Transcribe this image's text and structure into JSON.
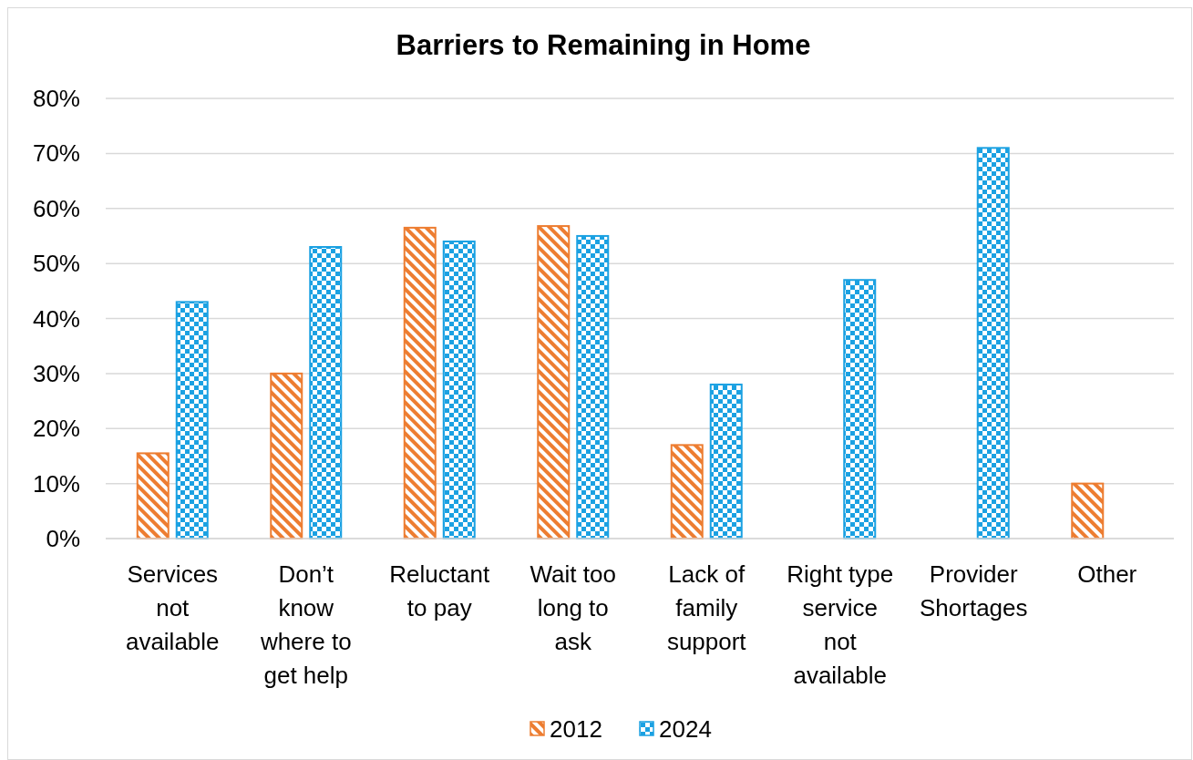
{
  "chart_data": {
    "type": "bar",
    "title": "Barriers to Remaining in Home",
    "categories": [
      "Services not available",
      "Don’t know where to get help",
      "Reluctant to pay",
      "Wait too long to ask",
      "Lack of family support",
      "Right type service not available",
      "Provider Shortages",
      "Other"
    ],
    "series": [
      {
        "name": "2012",
        "color": "#ed7d31",
        "values": [
          15.5,
          30,
          56.5,
          56.8,
          17,
          null,
          null,
          10
        ]
      },
      {
        "name": "2024",
        "color": "#1ba1e2",
        "values": [
          43,
          53,
          54,
          55,
          28,
          47,
          71,
          null
        ]
      }
    ],
    "ylim": [
      0,
      80
    ],
    "yticks": [
      {
        "value": 0,
        "label": "0%"
      },
      {
        "value": 10,
        "label": "10%"
      },
      {
        "value": 20,
        "label": "20%"
      },
      {
        "value": 30,
        "label": "30%"
      },
      {
        "value": 40,
        "label": "40%"
      },
      {
        "value": 50,
        "label": "50%"
      },
      {
        "value": 60,
        "label": "60%"
      },
      {
        "value": 70,
        "label": "70%"
      },
      {
        "value": 80,
        "label": "80%"
      }
    ],
    "grid": "y",
    "legend": "bottom"
  }
}
